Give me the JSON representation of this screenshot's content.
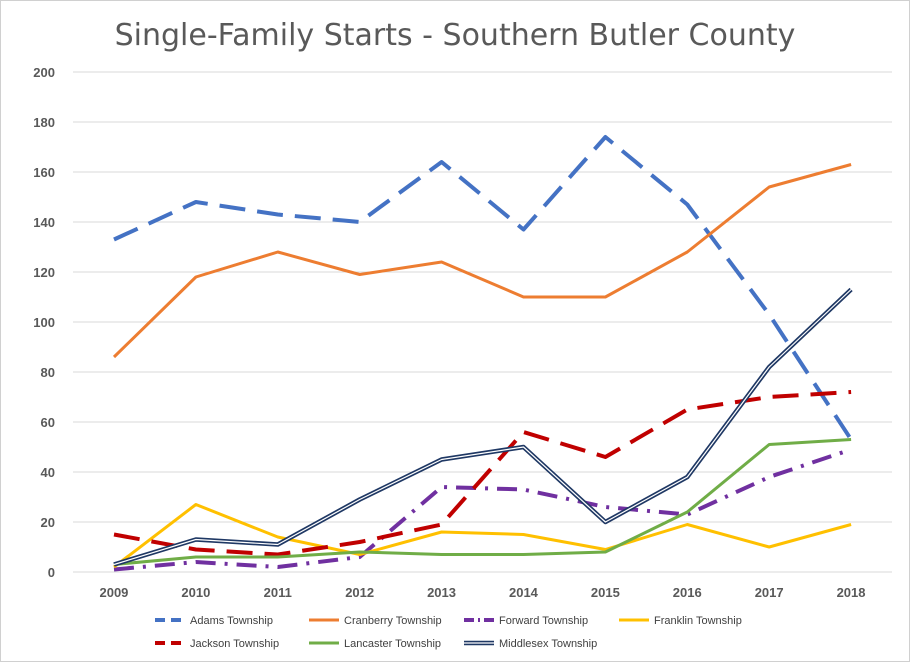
{
  "chart_data": {
    "type": "line",
    "title": "Single-Family Starts - Southern Butler County",
    "xlabel": "",
    "ylabel": "",
    "categories": [
      "2009",
      "2010",
      "2011",
      "2012",
      "2013",
      "2014",
      "2015",
      "2016",
      "2017",
      "2018"
    ],
    "ylim": [
      0,
      200
    ],
    "yticks": [
      0,
      20,
      40,
      60,
      80,
      100,
      120,
      140,
      160,
      180,
      200
    ],
    "grid": true,
    "legend_position": "bottom",
    "series": [
      {
        "name": "Adams Township",
        "values": [
          133,
          148,
          143,
          140,
          164,
          137,
          174,
          147,
          103,
          53
        ],
        "color": "#4472C4",
        "style": "dashed"
      },
      {
        "name": "Cranberry Township",
        "values": [
          86,
          118,
          128,
          119,
          124,
          110,
          110,
          128,
          154,
          163
        ],
        "color": "#ED7D31",
        "style": "solid"
      },
      {
        "name": "Forward Township",
        "values": [
          1,
          4,
          2,
          6,
          34,
          33,
          26,
          23,
          38,
          49
        ],
        "color": "#7030A0",
        "style": "dashdot"
      },
      {
        "name": "Franklin Township",
        "values": [
          2,
          27,
          14,
          7,
          16,
          15,
          9,
          19,
          10,
          19
        ],
        "color": "#FFC000",
        "style": "solid"
      },
      {
        "name": "Jackson Township",
        "values": [
          15,
          9,
          7,
          12,
          19,
          56,
          46,
          65,
          70,
          72
        ],
        "color": "#C00000",
        "style": "dashed"
      },
      {
        "name": "Lancaster Township",
        "values": [
          3,
          6,
          6,
          8,
          7,
          7,
          8,
          24,
          51,
          53
        ],
        "color": "#70AD47",
        "style": "solid"
      },
      {
        "name": "Middlesex Township",
        "values": [
          3,
          13,
          11,
          29,
          45,
          50,
          20,
          38,
          82,
          113
        ],
        "color": "#1F3864",
        "style": "double"
      }
    ]
  }
}
